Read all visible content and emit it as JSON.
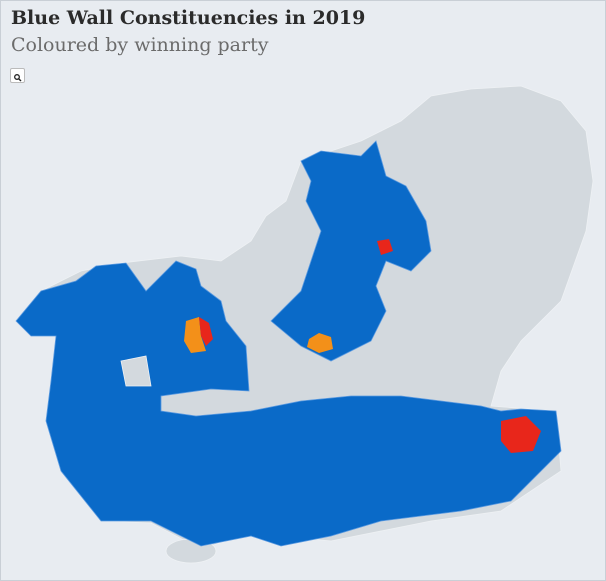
{
  "header": {
    "title": "Blue Wall Constituencies in 2019",
    "subtitle": "Coloured by winning party"
  }
}
